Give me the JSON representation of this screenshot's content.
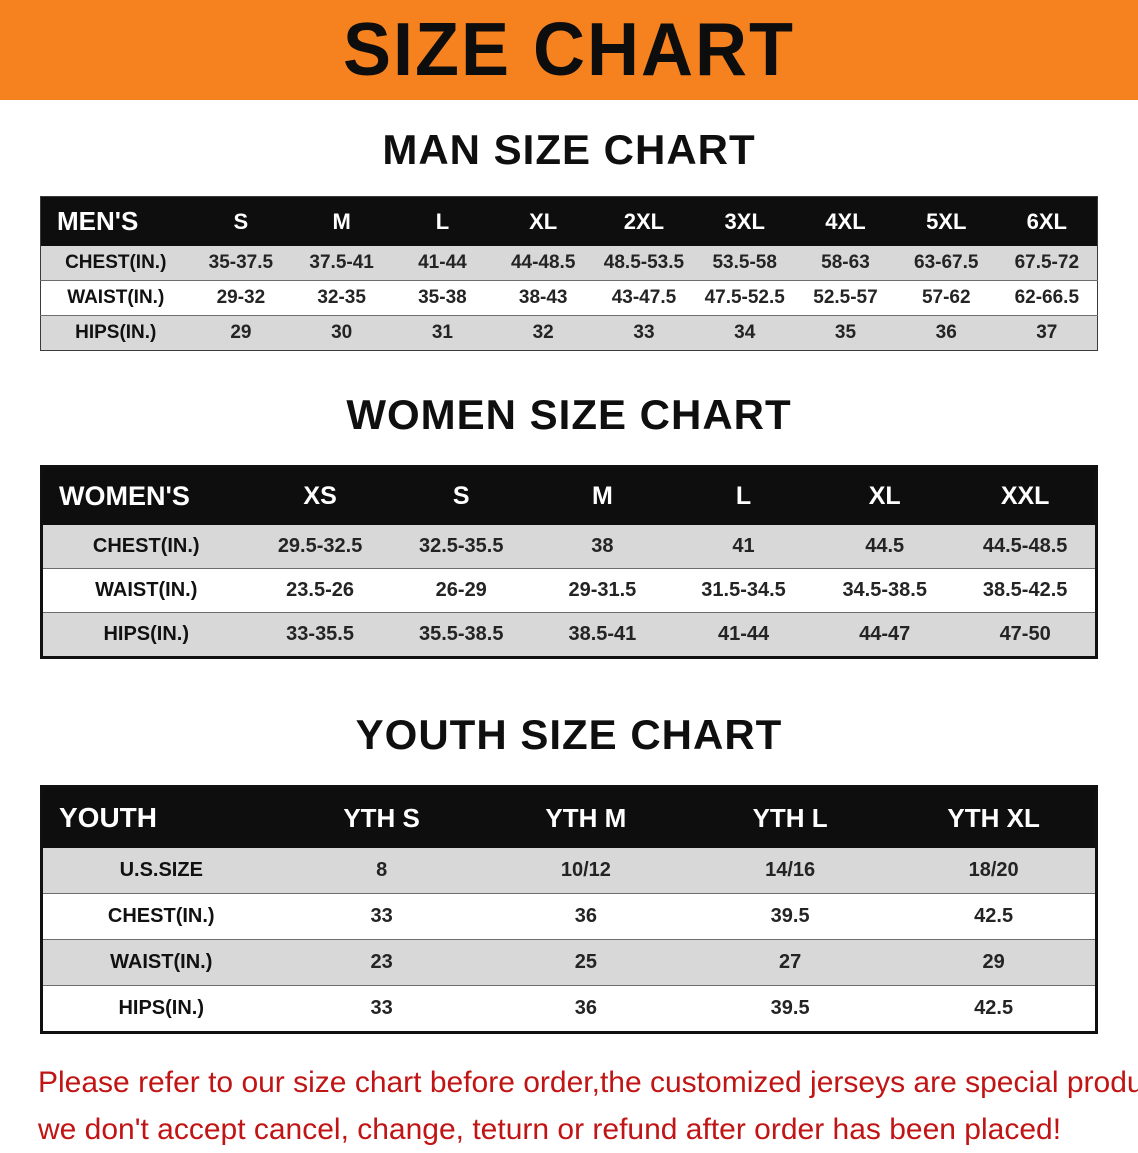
{
  "banner": {
    "title": "SIZE CHART",
    "bg_color": "#F5821E"
  },
  "sections": [
    {
      "heading": "MAN SIZE CHART",
      "table": {
        "header": [
          "MEN'S",
          "S",
          "M",
          "L",
          "XL",
          "2XL",
          "3XL",
          "4XL",
          "5XL",
          "6XL"
        ],
        "rows": [
          {
            "label": "CHEST(IN.)",
            "values": [
              "35-37.5",
              "37.5-41",
              "41-44",
              "44-48.5",
              "48.5-53.5",
              "53.5-58",
              "58-63",
              "63-67.5",
              "67.5-72"
            ]
          },
          {
            "label": "WAIST(IN.)",
            "values": [
              "29-32",
              "32-35",
              "35-38",
              "38-43",
              "43-47.5",
              "47.5-52.5",
              "52.5-57",
              "57-62",
              "62-66.5"
            ]
          },
          {
            "label": "HIPS(IN.)",
            "values": [
              "29",
              "30",
              "31",
              "32",
              "33",
              "34",
              "35",
              "36",
              "37"
            ]
          }
        ]
      }
    },
    {
      "heading": "WOMEN SIZE CHART",
      "table": {
        "header": [
          "WOMEN'S",
          "XS",
          "S",
          "M",
          "L",
          "XL",
          "XXL"
        ],
        "rows": [
          {
            "label": "CHEST(IN.)",
            "values": [
              "29.5-32.5",
              "32.5-35.5",
              "38",
              "41",
              "44.5",
              "44.5-48.5"
            ]
          },
          {
            "label": "WAIST(IN.)",
            "values": [
              "23.5-26",
              "26-29",
              "29-31.5",
              "31.5-34.5",
              "34.5-38.5",
              "38.5-42.5"
            ]
          },
          {
            "label": "HIPS(IN.)",
            "values": [
              "33-35.5",
              "35.5-38.5",
              "38.5-41",
              "41-44",
              "44-47",
              "47-50"
            ]
          }
        ]
      }
    },
    {
      "heading": "YOUTH SIZE CHART",
      "table": {
        "header": [
          "YOUTH",
          "YTH S",
          "YTH M",
          "YTH L",
          "YTH XL"
        ],
        "rows": [
          {
            "label": "U.S.SIZE",
            "values": [
              "8",
              "10/12",
              "14/16",
              "18/20"
            ]
          },
          {
            "label": "CHEST(IN.)",
            "values": [
              "33",
              "36",
              "39.5",
              "42.5"
            ]
          },
          {
            "label": "WAIST(IN.)",
            "values": [
              "23",
              "25",
              "27",
              "29"
            ]
          },
          {
            "label": "HIPS(IN.)",
            "values": [
              "33",
              "36",
              "39.5",
              "42.5"
            ]
          }
        ]
      }
    }
  ],
  "notice": {
    "line1": "Please refer to our size chart before order,the customized jerseys are special products,",
    "line2": "we don't accept cancel, change, teturn or refund after order has been placed!",
    "text_color": "#C11414"
  }
}
